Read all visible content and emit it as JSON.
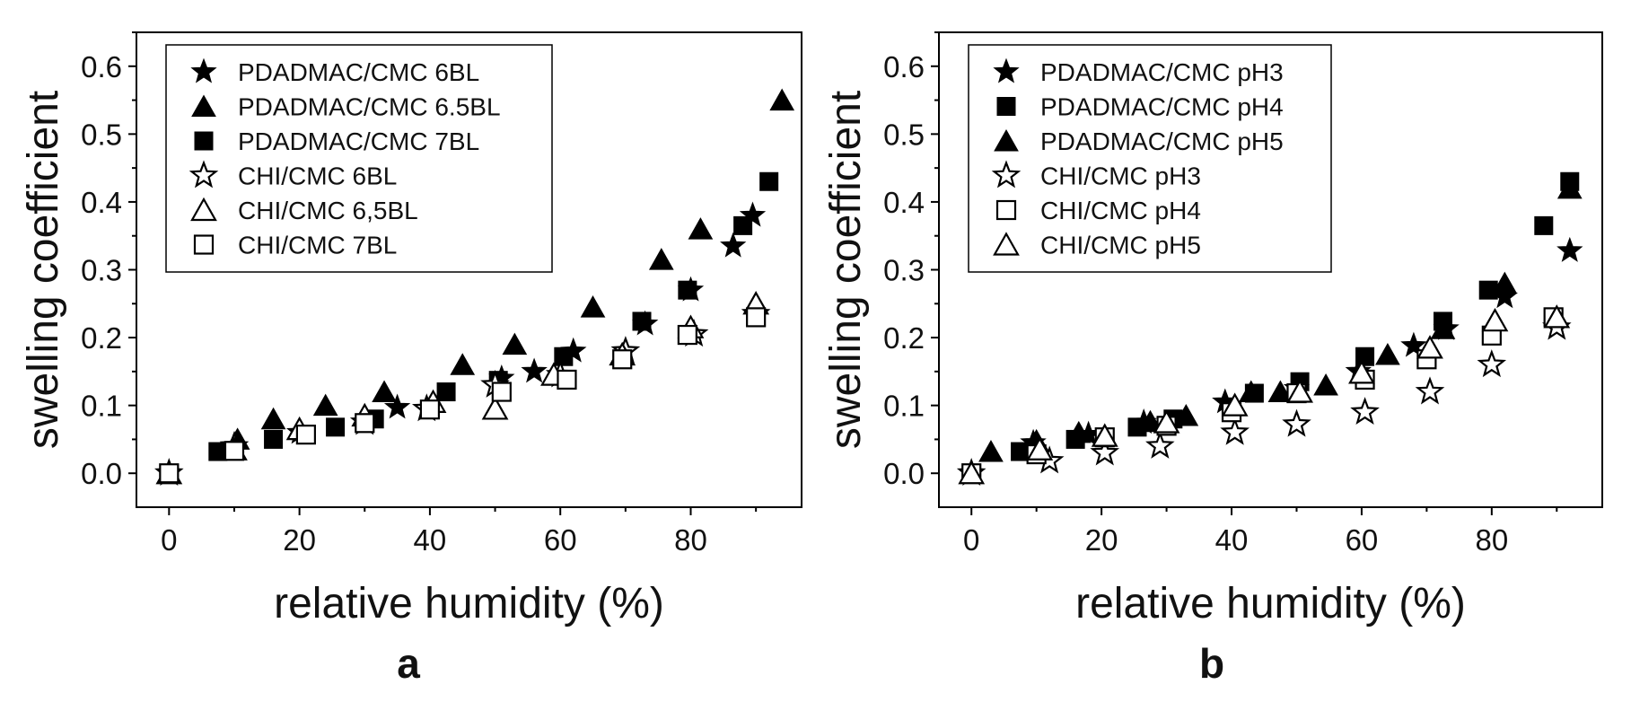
{
  "chart_data": [
    {
      "type": "scatter",
      "panel_label": "a",
      "xlabel": "relative humidity (%)",
      "ylabel": "swelling coefficient",
      "xlim": [
        -5,
        97
      ],
      "ylim": [
        -0.05,
        0.65
      ],
      "xticks": [
        0,
        20,
        40,
        60,
        80
      ],
      "xtick_labels": [
        "0",
        "20",
        "40",
        "60",
        "80"
      ],
      "yticks": [
        0.0,
        0.1,
        0.2,
        0.3,
        0.4,
        0.5,
        0.6
      ],
      "ytick_labels": [
        "0.0",
        "0.1",
        "0.2",
        "0.3",
        "0.4",
        "0.5",
        "0.6"
      ],
      "legend_position": "top-left",
      "series": [
        {
          "name": "PDADMAC/CMC 6BL",
          "marker": "star",
          "filled": true,
          "x": [
            0,
            20,
            35,
            51,
            56,
            62,
            73,
            80,
            86.5,
            89.5
          ],
          "y": [
            0,
            0.06,
            0.097,
            0.14,
            0.15,
            0.18,
            0.22,
            0.27,
            0.335,
            0.38
          ]
        },
        {
          "name": "PDADMAC/CMC 6.5BL",
          "marker": "triangle",
          "filled": true,
          "x": [
            0,
            10.5,
            16,
            24,
            33,
            45,
            53,
            65,
            75.5,
            81.5,
            94
          ],
          "y": [
            0,
            0.05,
            0.08,
            0.1,
            0.12,
            0.16,
            0.19,
            0.245,
            0.315,
            0.36,
            0.55
          ]
        },
        {
          "name": "PDADMAC/CMC 7BL",
          "marker": "square",
          "filled": true,
          "x": [
            0,
            7.5,
            16,
            25.5,
            31.5,
            42.5,
            50.5,
            60.5,
            72.5,
            79.5,
            88,
            92
          ],
          "y": [
            0,
            0.032,
            0.05,
            0.068,
            0.08,
            0.12,
            0.137,
            0.172,
            0.224,
            0.27,
            0.365,
            0.43
          ]
        },
        {
          "name": "CHI/CMC 6BL",
          "marker": "star",
          "filled": false,
          "x": [
            0,
            10,
            30,
            39.5,
            50,
            60,
            70,
            80.5,
            90
          ],
          "y": [
            0,
            0.04,
            0.075,
            0.095,
            0.13,
            0.145,
            0.18,
            0.205,
            0.235
          ]
        },
        {
          "name": "CHI/CMC 6,5BL",
          "marker": "triangle",
          "filled": false,
          "x": [
            0,
            10,
            20,
            30,
            40.5,
            50,
            59,
            69.5,
            80,
            90
          ],
          "y": [
            0,
            0.035,
            0.065,
            0.085,
            0.105,
            0.095,
            0.145,
            0.175,
            0.215,
            0.25
          ]
        },
        {
          "name": "CHI/CMC 7BL",
          "marker": "square",
          "filled": false,
          "x": [
            0,
            10,
            21,
            30,
            40,
            51,
            61,
            69.5,
            79.5,
            90
          ],
          "y": [
            0,
            0.033,
            0.057,
            0.074,
            0.094,
            0.12,
            0.138,
            0.168,
            0.204,
            0.23
          ]
        }
      ]
    },
    {
      "type": "scatter",
      "panel_label": "b",
      "xlabel": "relative humidity (%)",
      "ylabel": "swelling coefficient",
      "xlim": [
        -5,
        97
      ],
      "ylim": [
        -0.05,
        0.65
      ],
      "xticks": [
        0,
        20,
        40,
        60,
        80
      ],
      "xtick_labels": [
        "0",
        "20",
        "40",
        "60",
        "80"
      ],
      "yticks": [
        0.0,
        0.1,
        0.2,
        0.3,
        0.4,
        0.5,
        0.6
      ],
      "ytick_labels": [
        "0.0",
        "0.1",
        "0.2",
        "0.3",
        "0.4",
        "0.5",
        "0.6"
      ],
      "legend_position": "top-left",
      "series": [
        {
          "name": "PDADMAC/CMC pH3",
          "marker": "star",
          "filled": true,
          "x": [
            0,
            9.5,
            18,
            26.5,
            39,
            50,
            59.5,
            68,
            73,
            82,
            92
          ],
          "y": [
            0,
            0.045,
            0.057,
            0.075,
            0.105,
            0.125,
            0.15,
            0.188,
            0.213,
            0.26,
            0.328
          ]
        },
        {
          "name": "PDADMAC/CMC pH4",
          "marker": "square",
          "filled": true,
          "x": [
            0,
            7.5,
            16,
            25.5,
            31,
            43.5,
            50.5,
            60.5,
            72.5,
            79.5,
            88,
            92
          ],
          "y": [
            0,
            0.032,
            0.05,
            0.068,
            0.08,
            0.118,
            0.135,
            0.172,
            0.224,
            0.27,
            0.365,
            0.43
          ]
        },
        {
          "name": "PDADMAC/CMC pH5",
          "marker": "triangle",
          "filled": true,
          "x": [
            0,
            3,
            10,
            16.5,
            27.5,
            33,
            43,
            47.5,
            54.5,
            64,
            72.5,
            82,
            92
          ],
          "y": [
            0,
            0.032,
            0.048,
            0.06,
            0.076,
            0.085,
            0.12,
            0.12,
            0.13,
            0.175,
            0.213,
            0.28,
            0.42
          ]
        },
        {
          "name": "CHI/CMC pH3",
          "marker": "star",
          "filled": false,
          "x": [
            0,
            12,
            20.5,
            29,
            40.5,
            50,
            60.5,
            70.5,
            80,
            90
          ],
          "y": [
            0,
            0.018,
            0.03,
            0.04,
            0.06,
            0.072,
            0.09,
            0.12,
            0.16,
            0.215
          ]
        },
        {
          "name": "CHI/CMC pH4",
          "marker": "square",
          "filled": false,
          "x": [
            0,
            10,
            20.5,
            30,
            40,
            50,
            60.5,
            70,
            80,
            89.5
          ],
          "y": [
            0,
            0.028,
            0.053,
            0.07,
            0.09,
            0.118,
            0.138,
            0.168,
            0.203,
            0.23
          ]
        },
        {
          "name": "CHI/CMC pH5",
          "marker": "triangle",
          "filled": false,
          "x": [
            0,
            10.5,
            20.5,
            30,
            40.5,
            50.5,
            60,
            70.5,
            80.5,
            90
          ],
          "y": [
            0,
            0.035,
            0.055,
            0.075,
            0.1,
            0.12,
            0.148,
            0.185,
            0.225,
            0.23
          ]
        }
      ]
    }
  ]
}
